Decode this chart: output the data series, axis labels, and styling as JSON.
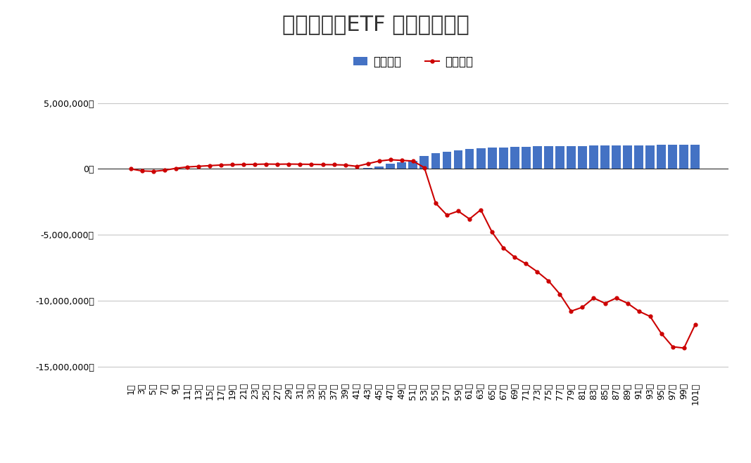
{
  "title": "トライオーETF 週別運用実績",
  "legend_label_bar": "実現損益",
  "legend_label_line": "評価損益",
  "bar_color": "#4472C4",
  "line_color": "#CC0000",
  "background_color": "#FFFFFF",
  "weeks": [
    1,
    3,
    5,
    7,
    9,
    11,
    13,
    15,
    17,
    19,
    21,
    23,
    25,
    27,
    29,
    31,
    33,
    35,
    37,
    39,
    41,
    43,
    45,
    47,
    49,
    51,
    53,
    55,
    57,
    59,
    61,
    63,
    65,
    67,
    69,
    71,
    73,
    75,
    77,
    79,
    81,
    83,
    85,
    87,
    89,
    91,
    93,
    95,
    97,
    99,
    101
  ],
  "bar_values": [
    0,
    0,
    0,
    0,
    0,
    0,
    0,
    0,
    0,
    0,
    0,
    0,
    0,
    0,
    0,
    0,
    0,
    0,
    0,
    0,
    50000,
    100000,
    200000,
    400000,
    500000,
    600000,
    1000000,
    1200000,
    1300000,
    1400000,
    1500000,
    1550000,
    1600000,
    1650000,
    1700000,
    1700000,
    1720000,
    1730000,
    1730000,
    1740000,
    1750000,
    1760000,
    1780000,
    1780000,
    1780000,
    1800000,
    1810000,
    1820000,
    1830000,
    1840000,
    1850000
  ],
  "line_values": [
    0,
    -150000,
    -180000,
    -100000,
    50000,
    150000,
    200000,
    250000,
    300000,
    320000,
    340000,
    350000,
    370000,
    360000,
    370000,
    360000,
    350000,
    330000,
    320000,
    300000,
    200000,
    400000,
    600000,
    700000,
    650000,
    600000,
    100000,
    -2600000,
    -3500000,
    -3200000,
    -3800000,
    -3100000,
    -4800000,
    -6000000,
    -6700000,
    -7200000,
    -7800000,
    -8500000,
    -9500000,
    -10800000,
    -10500000,
    -9800000,
    -10200000,
    -9800000,
    -10200000,
    -10800000,
    -11200000,
    -12500000,
    -13500000,
    -13600000,
    -11800000
  ],
  "ylim": [
    -16000000,
    6500000
  ],
  "yticks": [
    -15000000,
    -10000000,
    -5000000,
    0,
    5000000
  ],
  "grid_color": "#C8C8C8",
  "title_fontsize": 22,
  "tick_fontsize": 9,
  "ylabel_map": {
    "-15000000": "-15,000,000円",
    "-10000000": "-10,000,000円",
    "-5000000": "-5,000,000円",
    "0": "0円",
    "5000000": "5,000,000円"
  }
}
